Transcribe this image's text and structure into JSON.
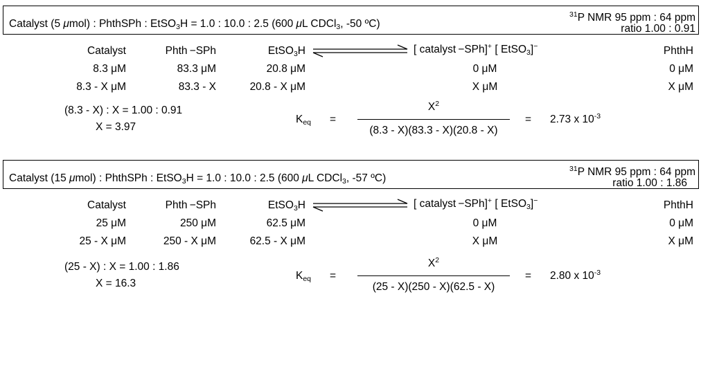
{
  "colors": {
    "ink": "#000000",
    "background": "#ffffff"
  },
  "panels": [
    {
      "header": {
        "lead": "Catalyst (5 ",
        "mu": "μ",
        "amount_tail": "mol) : PhthSPh : EtSO",
        "sub3": "3",
        "ratio_part": "H  = 1.0 : 10.0 : 2.5  (600 ",
        "mu2": "μ",
        "solvent_tail": "L CDCl",
        "solvent_sub": "3",
        "temp": ", -50 ºC)",
        "nmr_sup": "31",
        "nmr_text": "P NMR 95 ppm : 64 ppm",
        "nmr_ratio": "ratio 1.00 : 0.91"
      },
      "species": {
        "catalyst": "Catalyst",
        "phth_sph": "Phth −SPh",
        "acid_base": "EtSO",
        "acid_sub": "3",
        "acid_tail": "H",
        "product_lead": "[ catalyst −SPh]",
        "product_sup": "+",
        "product_mid": " [ EtSO",
        "product_sub": "3",
        "product_close": "]",
        "product_sup2": "−",
        "phthh": "PhthH"
      },
      "initial": [
        "8.3 μM",
        "83.3 μM",
        "20.8 μM",
        "0 μM",
        "0 μM"
      ],
      "equilibrium": [
        "8.3 - X μM",
        "83.3 - X",
        "20.8 - X μM",
        "X μM",
        "X μM"
      ],
      "solve_line1": "(8.3 - X) : X = 1.00 : 0.91",
      "solve_line2": "X = 3.97",
      "keq_label": "K",
      "keq_sub": "eq",
      "equals1": "=",
      "numerator": "X",
      "numerator_sup": "2",
      "denominator": "(8.3 - X)(83.3 - X)(20.8 - X)",
      "equals2": "=",
      "result": "2.73 x 10",
      "result_sup": "-3"
    },
    {
      "header": {
        "lead": "Catalyst (15 ",
        "mu": "μ",
        "amount_tail": "mol) : PhthSPh : EtSO",
        "sub3": "3",
        "ratio_part": "H  = 1.0 : 10.0 : 2.5 (600 ",
        "mu2": "μ",
        "solvent_tail": "L CDCl",
        "solvent_sub": "3",
        "temp": ", -57 ºC)",
        "nmr_sup": "31",
        "nmr_text": "P NMR 95 ppm : 64 ppm",
        "nmr_ratio": "ratio 1.00 : 1.86"
      },
      "species": {
        "catalyst": "Catalyst",
        "phth_sph": "Phth −SPh",
        "acid_base": "EtSO",
        "acid_sub": "3",
        "acid_tail": "H",
        "product_lead": "[ catalyst −SPh]",
        "product_sup": "+",
        "product_mid": " [ EtSO",
        "product_sub": "3",
        "product_close": "]",
        "product_sup2": "−",
        "phthh": "PhthH"
      },
      "initial": [
        "25 μM",
        "250 μM",
        "62.5 μM",
        "0 μM",
        "0 μM"
      ],
      "equilibrium": [
        "25 - X μM",
        "250 - X μM",
        "62.5 - X μM",
        "X μM",
        "X μM"
      ],
      "solve_line1": "(25 - X) : X = 1.00 : 1.86",
      "solve_line2": "X = 16.3",
      "keq_label": "K",
      "keq_sub": "eq",
      "equals1": "=",
      "numerator": "X",
      "numerator_sup": "2",
      "denominator": "(25 - X)(250 - X)(62.5 - X)",
      "equals2": "=",
      "result": "2.80 x 10",
      "result_sup": "-3"
    }
  ]
}
